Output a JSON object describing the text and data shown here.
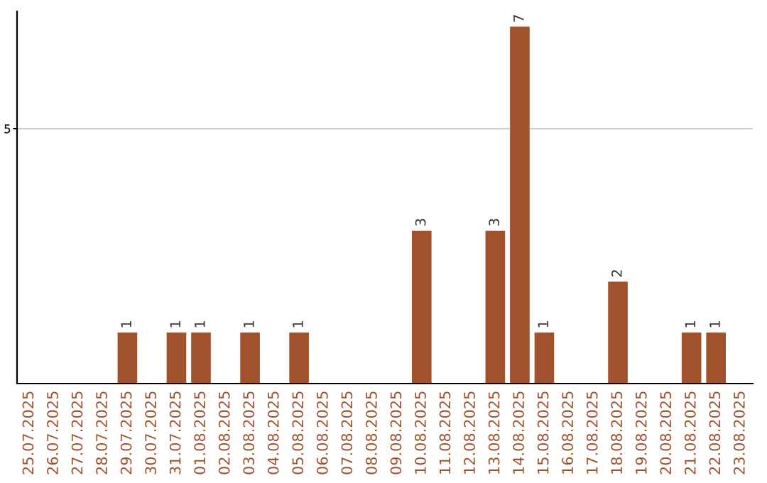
{
  "chart_data": {
    "type": "bar",
    "categories": [
      "25.07.2025",
      "26.07.2025",
      "27.07.2025",
      "28.07.2025",
      "29.07.2025",
      "30.07.2025",
      "31.07.2025",
      "01.08.2025",
      "02.08.2025",
      "03.08.2025",
      "04.08.2025",
      "05.08.2025",
      "06.08.2025",
      "07.08.2025",
      "08.08.2025",
      "09.08.2025",
      "10.08.2025",
      "11.08.2025",
      "12.08.2025",
      "13.08.2025",
      "14.08.2025",
      "15.08.2025",
      "16.08.2025",
      "17.08.2025",
      "18.08.2025",
      "19.08.2025",
      "20.08.2025",
      "21.08.2025",
      "22.08.2025",
      "23.08.2025"
    ],
    "values": [
      0,
      0,
      0,
      0,
      1,
      0,
      1,
      1,
      0,
      1,
      0,
      1,
      0,
      0,
      0,
      0,
      3,
      0,
      0,
      3,
      7,
      1,
      0,
      0,
      2,
      0,
      0,
      1,
      1,
      0
    ],
    "value_labels": [
      null,
      null,
      null,
      null,
      "1",
      null,
      "1",
      "1",
      null,
      "1",
      null,
      "1",
      null,
      null,
      null,
      null,
      "3",
      null,
      null,
      "3",
      "7",
      "1",
      null,
      null,
      "2",
      null,
      null,
      "1",
      "1",
      null
    ],
    "color": "#a0522d",
    "ylim": [
      0,
      7.3
    ],
    "yticks": [
      5
    ],
    "grid": "y"
  }
}
